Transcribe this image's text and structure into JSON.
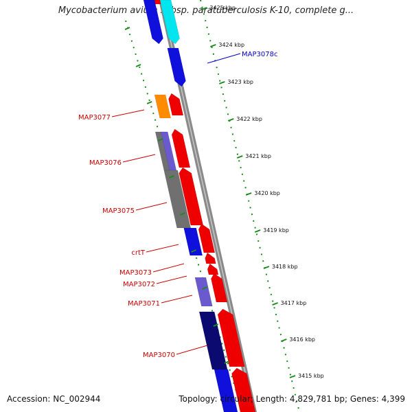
{
  "title": "Mycobacterium avium subsp. paratuberculosis K-10, complete g...",
  "accession": "Accession: NC_002944",
  "summary": "Topology: circular; Length: 4,829,781 bp; Genes: 4,399",
  "ticks": [
    "3425 kbp",
    "3424 kbp",
    "3423 kbp",
    "3422 kbp",
    "3421 kbp",
    "3420 kbp",
    "3419 kbp",
    "3418 kbp",
    "3417 kbp",
    "3416 kbp",
    "3415 kbp"
  ],
  "gene_labels": [
    {
      "text": "MAP3078c",
      "color": "#0000cc"
    },
    {
      "text": "MAP3077",
      "color": "#cc0000"
    },
    {
      "text": "MAP3076",
      "color": "#cc0000"
    },
    {
      "text": "MAP3075",
      "color": "#cc0000"
    },
    {
      "text": "crtT",
      "color": "#cc0000"
    },
    {
      "text": "MAP3073",
      "color": "#cc0000"
    },
    {
      "text": "MAP3072",
      "color": "#cc0000"
    },
    {
      "text": "MAP3071",
      "color": "#cc0000"
    },
    {
      "text": "MAP3070",
      "color": "#cc0000"
    }
  ],
  "colors": {
    "forward_cds": "#ee0000",
    "reverse_cds": "#1010dd",
    "dark_reverse": "#0a0a70",
    "orange_feature": "#ff8c00",
    "cyan_feature": "#00e5ee",
    "grey_feature": "#707070",
    "purple_feature": "#6a5acd",
    "tick_green": "#1a8a1a",
    "backbone": "#888888"
  }
}
